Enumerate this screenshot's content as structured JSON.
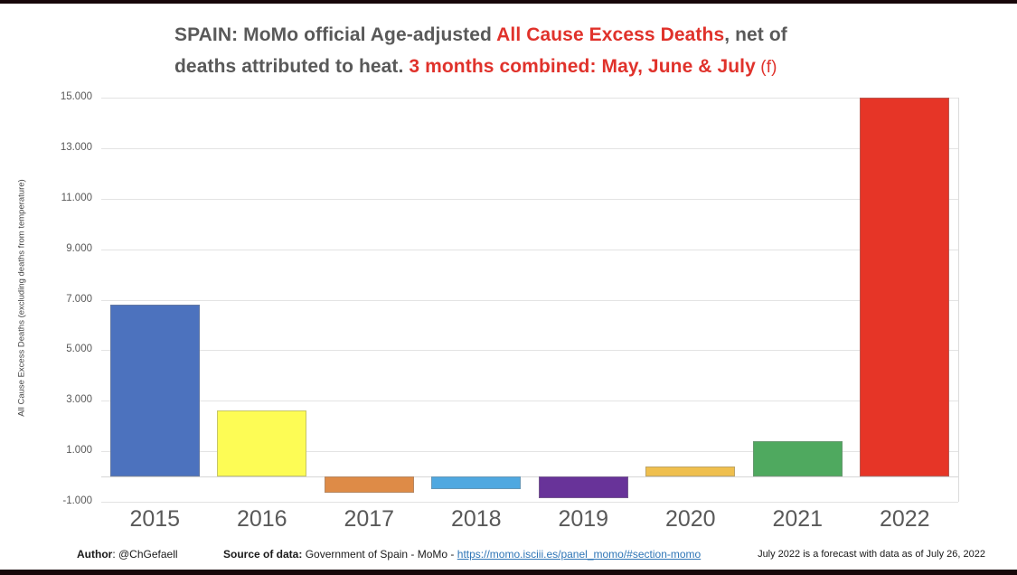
{
  "title": {
    "seg1": "SPAIN: MoMo official Age-adjusted ",
    "seg2": "All Cause Excess Deaths",
    "seg3": ", net of",
    "seg4": "deaths attributed to heat. ",
    "seg5": "3 months combined: May, June & July",
    "seg6": " (f)"
  },
  "footer": {
    "author_label": "Author",
    "author_value": ": @ChGefaell",
    "source_label": "Source of data:",
    "source_value": " Government of Spain - MoMo - ",
    "source_link": "https://momo.isciii.es/panel_momo/#section-momo",
    "note": "July 2022 is a forecast with data as of July 26, 2022"
  },
  "colors": {
    "title_gray": "#595959",
    "title_red": "#E0322B",
    "grid": "#e3e3e3",
    "axis_line": "#d6d6d6",
    "tick_text": "#595959",
    "link_blue": "#2E75B6",
    "frame_black": "#170709"
  },
  "chart_data": {
    "type": "bar",
    "title": "SPAIN: MoMo official Age-adjusted All Cause Excess Deaths, net of deaths attributed to heat. 3 months combined: May, June & July (f)",
    "categories": [
      "2015",
      "2016",
      "2017",
      "2018",
      "2019",
      "2020",
      "2021",
      "2022"
    ],
    "values": [
      6800,
      2600,
      -650,
      -500,
      -850,
      400,
      1400,
      15000
    ],
    "bar_colors": [
      "#4C72BE",
      "#FDFC55",
      "#DE8B47",
      "#4FA8E0",
      "#683399",
      "#EFBF4E",
      "#4FA95F",
      "#E63527"
    ],
    "xlabel": "",
    "ylabel": "All Cause Excess Deaths (excluding deaths from temperature)",
    "ylim": [
      -1000,
      15000
    ],
    "yticks": [
      -1000,
      1000,
      3000,
      5000,
      7000,
      9000,
      11000,
      13000,
      15000
    ],
    "ytick_labels": [
      "-1.000",
      "1.000",
      "3.000",
      "5.000",
      "7.000",
      "9.000",
      "11.000",
      "13.000",
      "15.000"
    ],
    "grid": true,
    "legend": false,
    "zero_baseline": true
  }
}
